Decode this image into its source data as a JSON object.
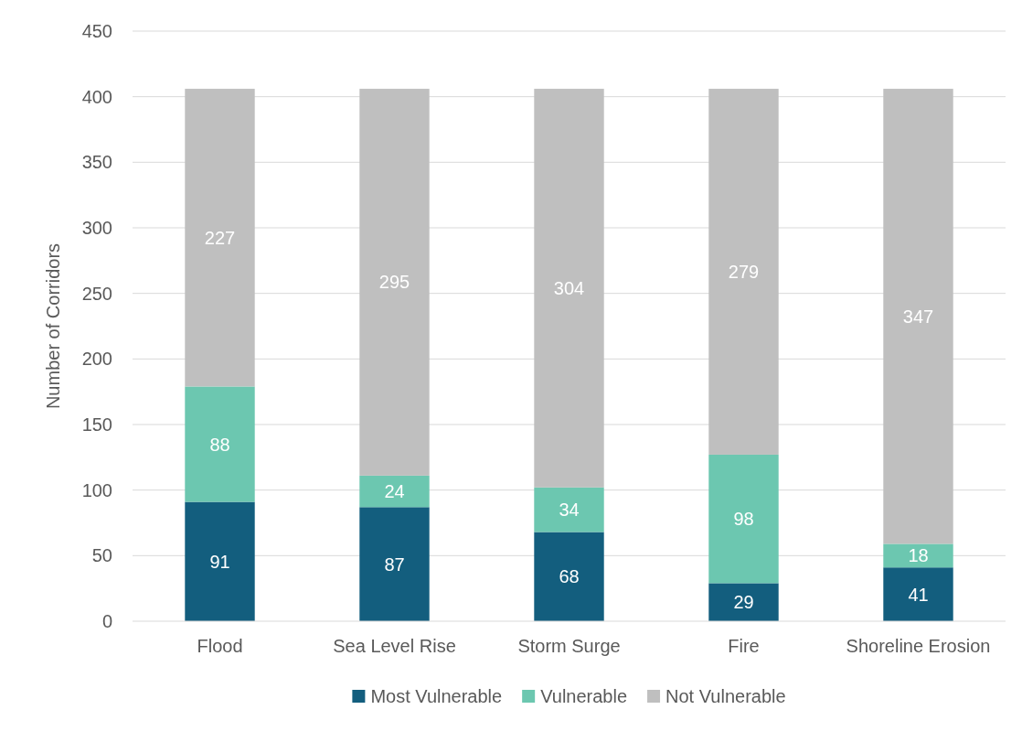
{
  "chart_data": {
    "type": "bar",
    "stacked": true,
    "ylabel": "Number of Corridors",
    "categories": [
      "Flood",
      "Sea Level Rise",
      "Storm Surge",
      "Fire",
      "Shoreline Erosion"
    ],
    "series": [
      {
        "name": "Most Vulnerable",
        "color": "#135e7e",
        "values": [
          91,
          87,
          68,
          29,
          41
        ]
      },
      {
        "name": "Vulnerable",
        "color": "#6cc7b0",
        "values": [
          88,
          24,
          34,
          98,
          18
        ]
      },
      {
        "name": "Not Vulnerable",
        "color": "#bfbfbf",
        "values": [
          227,
          295,
          304,
          279,
          347
        ]
      }
    ],
    "ylim": [
      0,
      450
    ],
    "yticks": [
      0,
      50,
      100,
      150,
      200,
      250,
      300,
      350,
      400,
      450
    ],
    "grid": "y",
    "legend": "bottom",
    "data_labels": true
  }
}
